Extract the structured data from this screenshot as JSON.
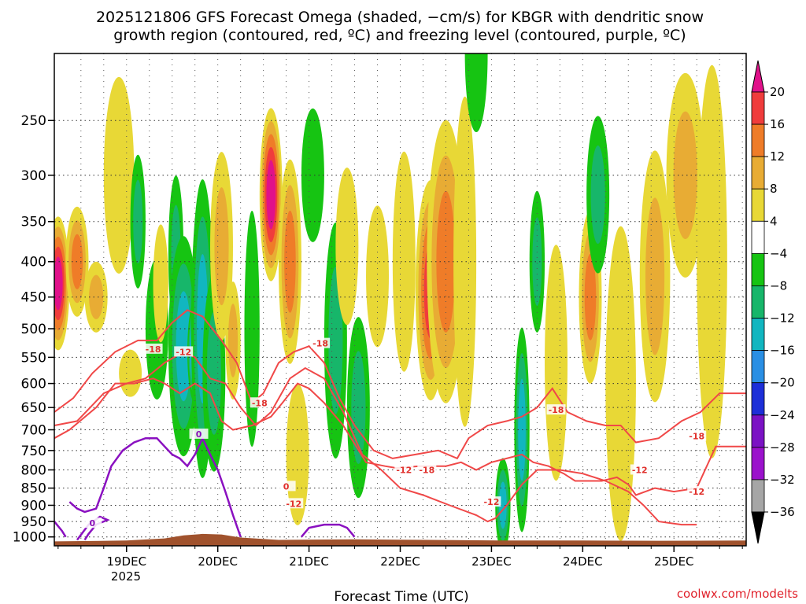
{
  "chart_data": {
    "type": "heatmap",
    "title_lines": [
      "2025121806 GFS Forecast Omega (shaded, −cm/s) for KBGR with dendritic snow",
      "growth region (contoured, red, ºC) and freezing level (contoured, purple, ºC)"
    ],
    "xlabel": "Forecast Time (UTC)",
    "x_ticks": [
      "19DEC",
      "20DEC",
      "21DEC",
      "22DEC",
      "23DEC",
      "24DEC",
      "25DEC"
    ],
    "x_sub": "2025",
    "xlim_hours": [
      -19,
      163
    ],
    "y_ticks": [
      250,
      300,
      350,
      400,
      450,
      500,
      550,
      600,
      650,
      700,
      750,
      800,
      850,
      900,
      950,
      1000
    ],
    "ylim_hPa": [
      200,
      1030
    ],
    "colorbar": {
      "labels": [
        "20",
        "16",
        "12",
        "8",
        "4",
        "−4",
        "−8",
        "−12",
        "−16",
        "−20",
        "−24",
        "−28",
        "−32",
        "−36"
      ],
      "levels": [
        24,
        20,
        16,
        12,
        8,
        4,
        -4,
        -8,
        -12,
        -16,
        -20,
        -24,
        -28,
        -32,
        -36,
        -40
      ],
      "colors": [
        "#e0118a",
        "#f03c3c",
        "#ef7c28",
        "#e8ac34",
        "#e8d836",
        "#ffffff",
        "#16c412",
        "#17b66a",
        "#11b6c0",
        "#2a8fe4",
        "#1d2fd8",
        "#7b12c4",
        "#9b12cc",
        "#a6a6a6",
        "#000000"
      ]
    },
    "omega_features": [
      {
        "hour": -18,
        "p": 430,
        "value": 21,
        "w": 3,
        "h": 170
      },
      {
        "hour": -13,
        "p": 400,
        "value": 12,
        "w": 3,
        "h": 140
      },
      {
        "hour": -8,
        "p": 450,
        "value": 9,
        "w": 3,
        "h": 90
      },
      {
        "hour": -2,
        "p": 300,
        "value": 7,
        "w": 4,
        "h": 250
      },
      {
        "hour": 1,
        "p": 580,
        "value": 6,
        "w": 3,
        "h": 60
      },
      {
        "hour": 3,
        "p": 350,
        "value": -8,
        "w": 2,
        "h": 170
      },
      {
        "hour": 8,
        "p": 500,
        "value": -6,
        "w": 3,
        "h": 180
      },
      {
        "hour": 9,
        "p": 430,
        "value": 5,
        "w": 2,
        "h": 150
      },
      {
        "hour": 13,
        "p": 390,
        "value": -9,
        "w": 2,
        "h": 200
      },
      {
        "hour": 15,
        "p": 530,
        "value": -13,
        "w": 4,
        "h": 280
      },
      {
        "hour": 18,
        "p": 540,
        "value": -23,
        "w": 2,
        "h": 130
      },
      {
        "hour": 20,
        "p": 500,
        "value": -13,
        "w": 3,
        "h": 380
      },
      {
        "hour": 23,
        "p": 580,
        "value": -10,
        "w": 3,
        "h": 250
      },
      {
        "hour": 25,
        "p": 380,
        "value": 9,
        "w": 3,
        "h": 240
      },
      {
        "hour": 28,
        "p": 520,
        "value": 9,
        "w": 2,
        "h": 150
      },
      {
        "hour": 33,
        "p": 500,
        "value": -7,
        "w": 2,
        "h": 300
      },
      {
        "hour": 38,
        "p": 320,
        "value": 22,
        "w": 3,
        "h": 220
      },
      {
        "hour": 43,
        "p": 400,
        "value": 13,
        "w": 3,
        "h": 260
      },
      {
        "hour": 45,
        "p": 760,
        "value": 6,
        "w": 3,
        "h": 180
      },
      {
        "hour": 49,
        "p": 300,
        "value": -7,
        "w": 3,
        "h": 170
      },
      {
        "hour": 55,
        "p": 520,
        "value": -10,
        "w": 3,
        "h": 300
      },
      {
        "hour": 58,
        "p": 380,
        "value": 5,
        "w": 3,
        "h": 200
      },
      {
        "hour": 61,
        "p": 650,
        "value": -9,
        "w": 3,
        "h": 230
      },
      {
        "hour": 66,
        "p": 420,
        "value": 7,
        "w": 3,
        "h": 180
      },
      {
        "hour": 73,
        "p": 400,
        "value": 6,
        "w": 3,
        "h": 280
      },
      {
        "hour": 80,
        "p": 440,
        "value": 18,
        "w": 4,
        "h": 280
      },
      {
        "hour": 84,
        "p": 400,
        "value": 14,
        "w": 5,
        "h": 360
      },
      {
        "hour": 89,
        "p": 400,
        "value": 6,
        "w": 3,
        "h": 420
      },
      {
        "hour": 92,
        "p": 200,
        "value": -6,
        "w": 3,
        "h": 200
      },
      {
        "hour": 99,
        "p": 900,
        "value": -15,
        "w": 2,
        "h": 120
      },
      {
        "hour": 104,
        "p": 700,
        "value": -14,
        "w": 2,
        "h": 260
      },
      {
        "hour": 108,
        "p": 400,
        "value": -8,
        "w": 2,
        "h": 180
      },
      {
        "hour": 113,
        "p": 560,
        "value": 6,
        "w": 3,
        "h": 300
      },
      {
        "hour": 122,
        "p": 450,
        "value": 14,
        "w": 3,
        "h": 220
      },
      {
        "hour": 124,
        "p": 320,
        "value": -9,
        "w": 3,
        "h": 200
      },
      {
        "hour": 130,
        "p": 600,
        "value": 6,
        "w": 4,
        "h": 400
      },
      {
        "hour": 139,
        "p": 420,
        "value": 9,
        "w": 4,
        "h": 320
      },
      {
        "hour": 147,
        "p": 300,
        "value": 10,
        "w": 5,
        "h": 260
      },
      {
        "hour": 154,
        "p": 400,
        "value": 7,
        "w": 4,
        "h": 500
      }
    ],
    "dgz_contours": [
      {
        "name": "-12",
        "points": [
          [
            -19,
            720
          ],
          [
            -15,
            700
          ],
          [
            -8,
            650
          ],
          [
            -3,
            600
          ],
          [
            2,
            600
          ],
          [
            7,
            590
          ],
          [
            10,
            600
          ],
          [
            14,
            620
          ],
          [
            18,
            600
          ],
          [
            22,
            620
          ],
          [
            25,
            680
          ],
          [
            28,
            700
          ],
          [
            33,
            690
          ],
          [
            38,
            670
          ],
          [
            41,
            640
          ],
          [
            45,
            600
          ],
          [
            48,
            610
          ],
          [
            52,
            640
          ],
          [
            57,
            690
          ],
          [
            63,
            780
          ],
          [
            68,
            790
          ],
          [
            71,
            795
          ],
          [
            77,
            790
          ],
          [
            84,
            790
          ],
          [
            88,
            780
          ],
          [
            92,
            800
          ],
          [
            96,
            780
          ],
          [
            100,
            770
          ],
          [
            104,
            760
          ],
          [
            107,
            780
          ],
          [
            111,
            790
          ],
          [
            115,
            810
          ],
          [
            118,
            830
          ],
          [
            125,
            830
          ],
          [
            129,
            820
          ],
          [
            132,
            840
          ],
          [
            134,
            870
          ],
          [
            139,
            850
          ],
          [
            144,
            860
          ],
          [
            150,
            850
          ],
          [
            155,
            740
          ],
          [
            163,
            740
          ]
        ]
      },
      {
        "name": "-18",
        "points": [
          [
            -19,
            660
          ],
          [
            -14,
            630
          ],
          [
            -9,
            580
          ],
          [
            -3,
            540
          ],
          [
            3,
            520
          ],
          [
            8,
            520
          ],
          [
            12,
            490
          ],
          [
            16,
            470
          ],
          [
            20,
            480
          ],
          [
            25,
            520
          ],
          [
            29,
            560
          ],
          [
            33,
            640
          ],
          [
            36,
            620
          ],
          [
            40,
            560
          ],
          [
            44,
            540
          ],
          [
            48,
            530
          ],
          [
            52,
            560
          ],
          [
            56,
            630
          ],
          [
            60,
            690
          ],
          [
            65,
            750
          ],
          [
            70,
            770
          ],
          [
            76,
            760
          ],
          [
            82,
            750
          ],
          [
            87,
            770
          ],
          [
            90,
            720
          ],
          [
            95,
            690
          ],
          [
            100,
            680
          ],
          [
            104,
            670
          ],
          [
            108,
            650
          ],
          [
            112,
            610
          ],
          [
            116,
            660
          ],
          [
            121,
            680
          ],
          [
            126,
            690
          ],
          [
            130,
            690
          ],
          [
            134,
            730
          ],
          [
            140,
            720
          ],
          [
            146,
            680
          ],
          [
            151,
            660
          ],
          [
            156,
            620
          ],
          [
            163,
            620
          ]
        ]
      },
      {
        "name": "-12b",
        "points": [
          [
            -19,
            690
          ],
          [
            -13,
            680
          ],
          [
            -6,
            620
          ],
          [
            0,
            600
          ],
          [
            5,
            590
          ],
          [
            10,
            560
          ],
          [
            15,
            540
          ],
          [
            18,
            550
          ],
          [
            22,
            590
          ],
          [
            26,
            600
          ],
          [
            30,
            650
          ],
          [
            34,
            690
          ],
          [
            38,
            660
          ],
          [
            43,
            590
          ],
          [
            47,
            570
          ],
          [
            52,
            590
          ],
          [
            57,
            660
          ],
          [
            62,
            760
          ],
          [
            67,
            800
          ],
          [
            72,
            850
          ],
          [
            78,
            870
          ],
          [
            85,
            900
          ],
          [
            92,
            930
          ],
          [
            95,
            950
          ],
          [
            97,
            940
          ],
          [
            100,
            900
          ],
          [
            104,
            840
          ],
          [
            108,
            800
          ],
          [
            114,
            800
          ],
          [
            120,
            810
          ],
          [
            126,
            830
          ],
          [
            132,
            860
          ],
          [
            136,
            900
          ],
          [
            140,
            950
          ],
          [
            146,
            960
          ],
          [
            150,
            960
          ]
        ]
      }
    ],
    "freezing_contours": [
      {
        "name": "0-west",
        "points": [
          [
            -15,
            890
          ],
          [
            -13,
            910
          ],
          [
            -11,
            920
          ],
          [
            -8,
            910
          ],
          [
            -6,
            850
          ],
          [
            -4,
            790
          ],
          [
            -1,
            750
          ],
          [
            2,
            730
          ],
          [
            5,
            720
          ],
          [
            8,
            720
          ],
          [
            10,
            740
          ],
          [
            12,
            760
          ],
          [
            14,
            770
          ],
          [
            16,
            790
          ],
          [
            18,
            760
          ],
          [
            20,
            720
          ],
          [
            22,
            760
          ],
          [
            24,
            800
          ],
          [
            26,
            860
          ],
          [
            28,
            930
          ],
          [
            30,
            1000
          ]
        ]
      },
      {
        "name": "0-sw",
        "points": [
          [
            -19,
            950
          ],
          [
            -17,
            980
          ],
          [
            -16,
            1000
          ]
        ]
      },
      {
        "name": "0-loop",
        "points": [
          [
            -13,
            1010
          ],
          [
            -10,
            960
          ],
          [
            -7,
            935
          ],
          [
            -5,
            945
          ],
          [
            -8,
            960
          ],
          [
            -10,
            990
          ],
          [
            -11,
            1010
          ]
        ]
      },
      {
        "name": "0-east",
        "points": [
          [
            46,
            1000
          ],
          [
            48,
            970
          ],
          [
            52,
            960
          ],
          [
            56,
            960
          ],
          [
            58,
            970
          ],
          [
            60,
            1000
          ]
        ]
      }
    ],
    "contour_labels": [
      {
        "text": "-18",
        "hour": 7,
        "p": 535,
        "color": "#e0302c"
      },
      {
        "text": "-12",
        "hour": 15,
        "p": 540,
        "color": "#e0302c"
      },
      {
        "text": "-18",
        "hour": 51,
        "p": 525,
        "color": "#e0302c"
      },
      {
        "text": "-18",
        "hour": 35,
        "p": 640,
        "color": "#e0302c"
      },
      {
        "text": "0",
        "hour": 19,
        "p": 710,
        "color": "#8a10b8"
      },
      {
        "text": "0",
        "hour": 42,
        "p": 845,
        "color": "#e0302c"
      },
      {
        "text": "-12",
        "hour": 44,
        "p": 895,
        "color": "#e0302c"
      },
      {
        "text": "-12",
        "hour": 73,
        "p": 800,
        "color": "#e0302c"
      },
      {
        "text": "-18",
        "hour": 79,
        "p": 800,
        "color": "#e0302c"
      },
      {
        "text": "-18",
        "hour": 113,
        "p": 655,
        "color": "#e0302c"
      },
      {
        "text": "-12",
        "hour": 96,
        "p": 890,
        "color": "#e0302c"
      },
      {
        "text": "-12",
        "hour": 135,
        "p": 800,
        "color": "#e0302c"
      },
      {
        "text": "-18",
        "hour": 150,
        "p": 715,
        "color": "#e0302c"
      },
      {
        "text": "-12",
        "hour": 150,
        "p": 860,
        "color": "#e0302c"
      },
      {
        "text": "0",
        "hour": -9,
        "p": 955,
        "color": "#8a10b8"
      }
    ],
    "terrain_color": "#a0522d"
  },
  "watermark": "coolwx.com/modelts"
}
